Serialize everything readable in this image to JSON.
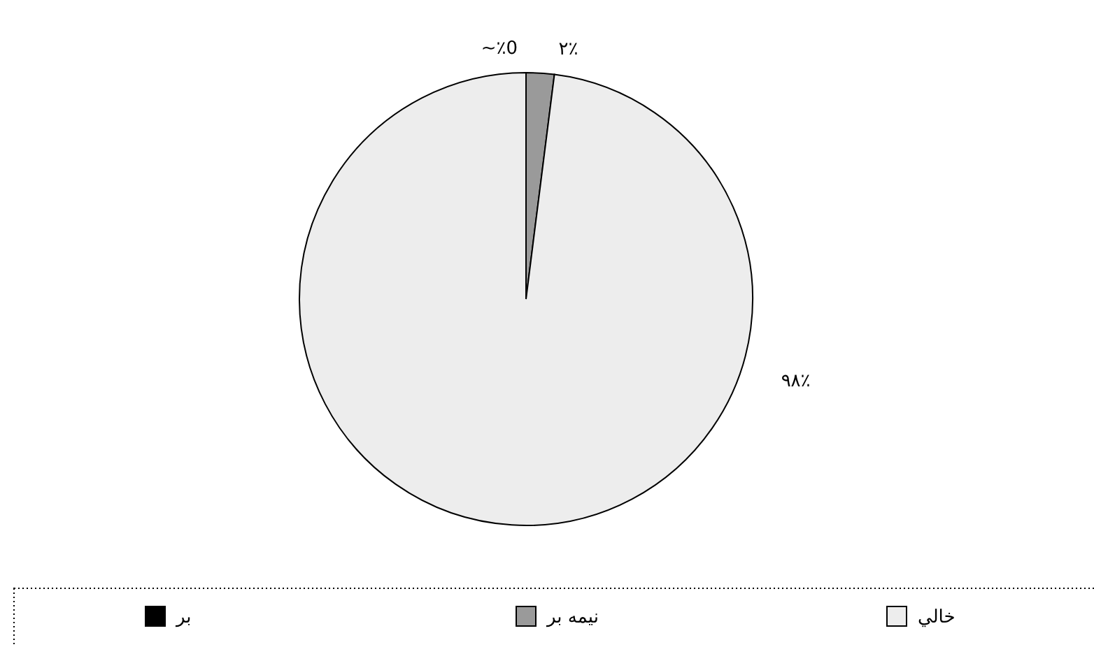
{
  "chart_data": {
    "type": "pie",
    "categories": [
      "بر",
      "نیمه بر",
      "خالي"
    ],
    "values": [
      0,
      2,
      98
    ],
    "colors": [
      "#000000",
      "#9a9a9a",
      "#ededed"
    ],
    "value_labels": [
      "~٪0",
      "۲٪",
      "۹۸٪"
    ],
    "legend": "bottom"
  }
}
